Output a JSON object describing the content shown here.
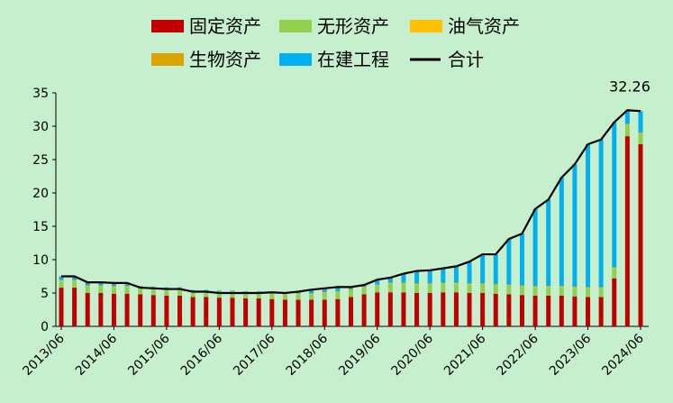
{
  "chart_data": {
    "type": "bar",
    "stacked": true,
    "categories": [
      "2013/06",
      null,
      null,
      null,
      "2014/06",
      null,
      null,
      null,
      "2015/06",
      null,
      null,
      null,
      "2016/06",
      null,
      null,
      null,
      "2017/06",
      null,
      null,
      null,
      "2018/06",
      null,
      null,
      null,
      "2019/06",
      null,
      null,
      null,
      "2020/06",
      null,
      null,
      null,
      "2021/06",
      null,
      null,
      null,
      "2022/06",
      null,
      null,
      null,
      "2023/06",
      null,
      null,
      null,
      "2024/06"
    ],
    "series": [
      {
        "name": "固定资产",
        "type": "bar",
        "color": "#c00000",
        "values": [
          5.8,
          5.8,
          5.0,
          5.0,
          4.9,
          4.9,
          4.8,
          4.7,
          4.6,
          4.6,
          4.4,
          4.4,
          4.3,
          4.3,
          4.2,
          4.2,
          4.1,
          4.0,
          4.0,
          4.0,
          4.0,
          4.1,
          4.4,
          4.8,
          5.1,
          5.1,
          5.1,
          5.0,
          5.0,
          5.1,
          5.1,
          5.0,
          5.0,
          4.9,
          4.8,
          4.7,
          4.6,
          4.6,
          4.6,
          4.5,
          4.4,
          4.4,
          7.2,
          28.5,
          27.3
        ]
      },
      {
        "name": "无形资产",
        "type": "bar",
        "color": "#92d050",
        "values": [
          1.0,
          1.0,
          1.0,
          1.0,
          1.0,
          1.0,
          1.0,
          1.0,
          1.0,
          1.0,
          0.8,
          0.8,
          0.8,
          0.8,
          0.8,
          0.8,
          0.8,
          0.8,
          0.8,
          0.8,
          1.0,
          1.0,
          1.0,
          1.0,
          1.0,
          1.3,
          1.3,
          1.3,
          1.3,
          1.3,
          1.3,
          1.3,
          1.3,
          1.3,
          1.3,
          1.3,
          1.3,
          1.3,
          1.3,
          1.3,
          1.3,
          1.3,
          1.5,
          1.7,
          1.6
        ]
      },
      {
        "name": "油气资产",
        "type": "bar",
        "color": "#ffc000",
        "values": [
          0.05,
          0.05,
          0.05,
          0.05,
          0.05,
          0.05,
          0.05,
          0.05,
          0.05,
          0.05,
          0.05,
          0.05,
          0.05,
          0.05,
          0.05,
          0.05,
          0.05,
          0.05,
          0.05,
          0.05,
          0.05,
          0.05,
          0.05,
          0.05,
          0.05,
          0.05,
          0.05,
          0.05,
          0.05,
          0.05,
          0.05,
          0.05,
          0.05,
          0.05,
          0.05,
          0.05,
          0.05,
          0.05,
          0.05,
          0.05,
          0.05,
          0.05,
          0.05,
          0.05,
          0.05
        ]
      },
      {
        "name": "生物资产",
        "type": "bar",
        "color": "#d9a300",
        "values": [
          0.1,
          0.1,
          0.1,
          0.1,
          0.1,
          0.1,
          0.1,
          0.1,
          0.1,
          0.1,
          0.1,
          0.1,
          0.1,
          0.1,
          0.1,
          0.1,
          0.1,
          0.1,
          0.1,
          0.1,
          0.1,
          0.1,
          0.1,
          0.1,
          0.1,
          0.1,
          0.1,
          0.1,
          0.1,
          0.1,
          0.1,
          0.1,
          0.1,
          0.1,
          0.1,
          0.1,
          0.1,
          0.1,
          0.1,
          0.1,
          0.1,
          0.1,
          0.1,
          0.1,
          0.1
        ]
      },
      {
        "name": "在建工程",
        "type": "bar",
        "color": "#00b0f0",
        "values": [
          0.55,
          0.55,
          0.45,
          0.45,
          0.45,
          0.45,
          0.1,
          0.1,
          0.1,
          0.1,
          0.1,
          0.1,
          0.1,
          0.1,
          0.1,
          0.1,
          0.1,
          0.1,
          0.25,
          0.55,
          0.55,
          0.65,
          0.35,
          0.25,
          0.75,
          0.75,
          1.35,
          1.85,
          1.95,
          2.15,
          2.45,
          3.25,
          4.35,
          4.45,
          6.85,
          7.75,
          11.55,
          12.95,
          16.25,
          18.35,
          21.45,
          22.15,
          21.75,
          2.05,
          3.21
        ]
      },
      {
        "name": "合计",
        "type": "line",
        "color": "#000000",
        "label_last": true,
        "values": [
          7.5,
          7.5,
          6.6,
          6.6,
          6.5,
          6.5,
          5.8,
          5.7,
          5.6,
          5.6,
          5.2,
          5.2,
          5.0,
          5.0,
          5.0,
          5.0,
          5.1,
          5.0,
          5.2,
          5.5,
          5.7,
          5.9,
          5.9,
          6.2,
          7.0,
          7.3,
          7.9,
          8.3,
          8.4,
          8.7,
          9.0,
          9.7,
          10.8,
          10.8,
          13.1,
          13.9,
          17.6,
          19.0,
          22.3,
          24.3,
          27.3,
          28.0,
          30.6,
          32.4,
          32.26
        ]
      }
    ],
    "ylim": [
      0,
      35
    ],
    "yticks": [
      0,
      5,
      10,
      15,
      20,
      25,
      30,
      35
    ],
    "grid": false,
    "legend": "top"
  }
}
